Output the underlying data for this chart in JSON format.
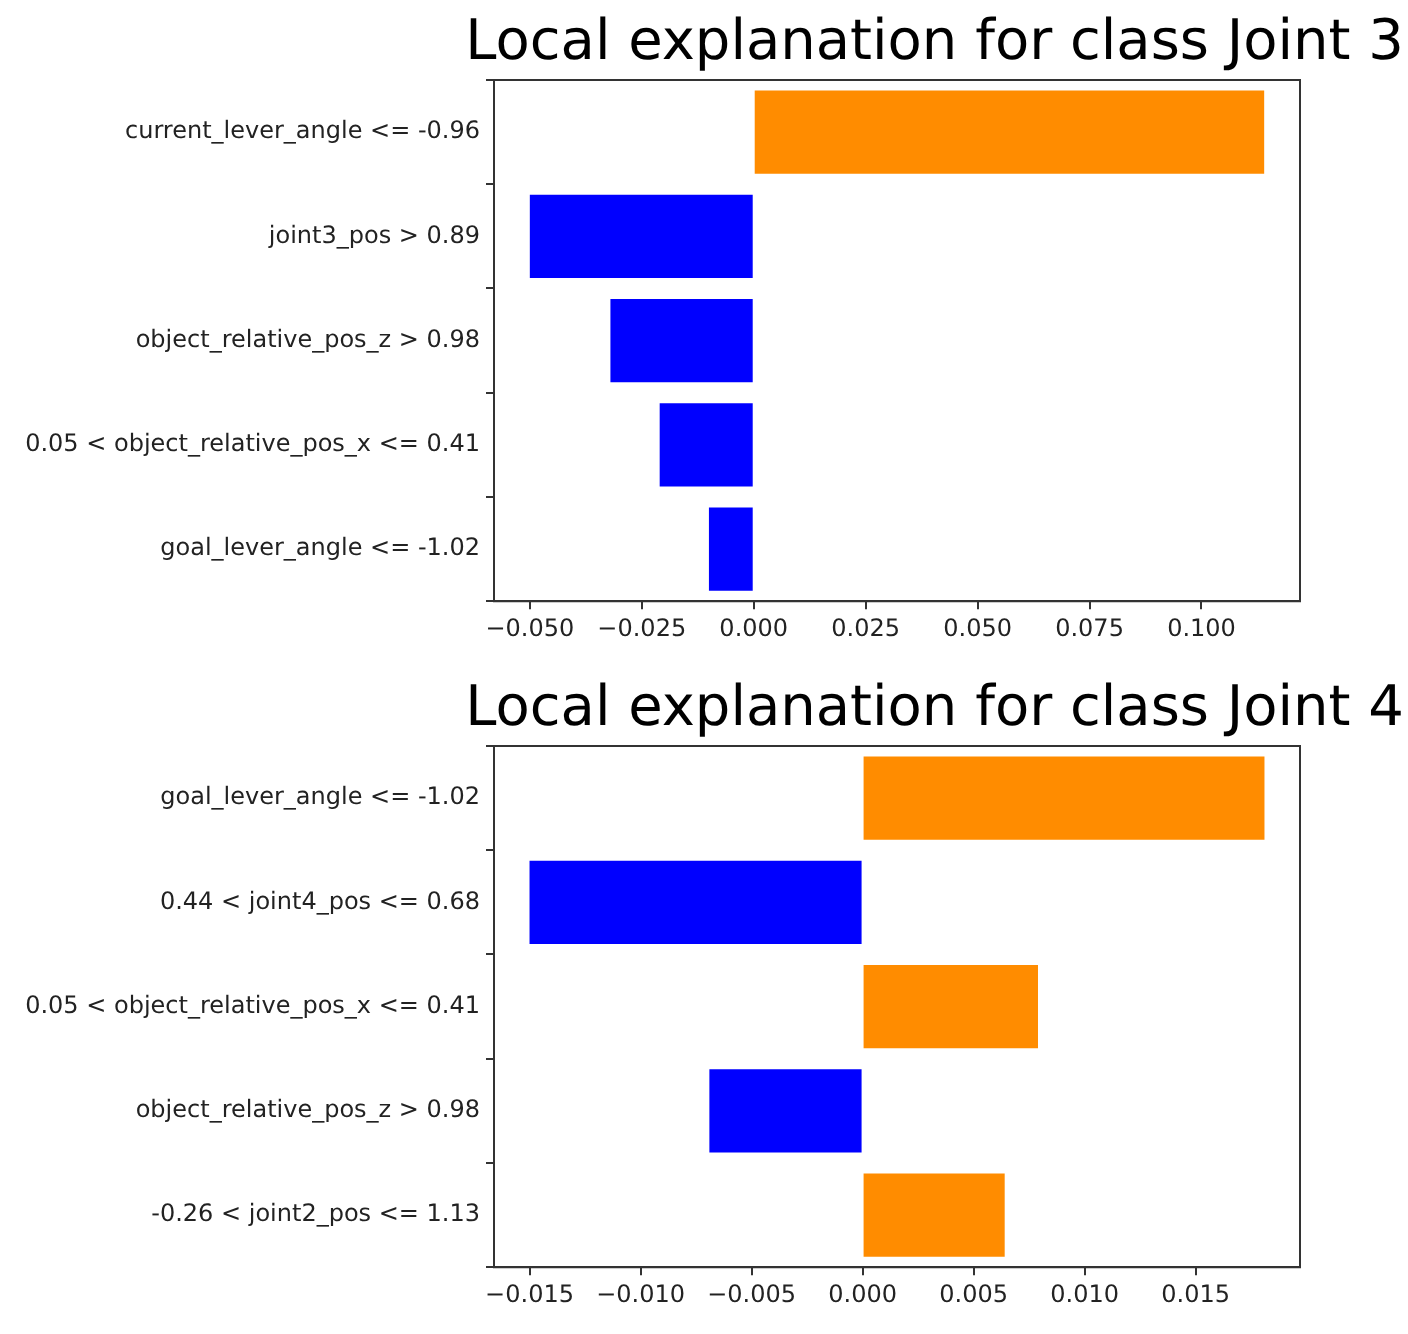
{
  "chart_data": [
    {
      "type": "bar",
      "orientation": "horizontal",
      "title": "Local explanation for class Joint 3",
      "categories": [
        "current_lever_angle <= -0.96",
        "joint3_pos > 0.89",
        "object_relative_pos_z > 0.98",
        "0.05 < object_relative_pos_x <= 0.41",
        "goal_lever_angle <= -1.02"
      ],
      "values": [
        0.114,
        -0.05,
        -0.032,
        -0.021,
        -0.01
      ],
      "colors": [
        "#ff8c00",
        "#0000ff",
        "#0000ff",
        "#0000ff",
        "#0000ff"
      ],
      "xlim": [
        -0.058,
        0.122
      ],
      "xticks": [
        {
          "value": -0.05,
          "label": "−0.050"
        },
        {
          "value": -0.025,
          "label": "−0.025"
        },
        {
          "value": 0,
          "label": "0.000"
        },
        {
          "value": 0.025,
          "label": "0.025"
        },
        {
          "value": 0.05,
          "label": "0.050"
        },
        {
          "value": 0.075,
          "label": "0.075"
        },
        {
          "value": 0.1,
          "label": "0.100"
        }
      ]
    },
    {
      "type": "bar",
      "orientation": "horizontal",
      "title": "Local explanation for class Joint 4",
      "categories": [
        "goal_lever_angle <= -1.02",
        "0.44 < joint4_pos <= 0.68",
        "0.05 < object_relative_pos_x <= 0.41",
        "object_relative_pos_z > 0.98",
        "-0.26 < joint2_pos <= 1.13"
      ],
      "values": [
        0.0181,
        -0.015,
        0.0079,
        -0.0069,
        0.0064
      ],
      "colors": [
        "#ff8c00",
        "#0000ff",
        "#ff8c00",
        "#0000ff",
        "#ff8c00"
      ],
      "xlim": [
        -0.0166,
        0.0197
      ],
      "xticks": [
        {
          "value": -0.015,
          "label": "−0.015"
        },
        {
          "value": -0.01,
          "label": "−0.010"
        },
        {
          "value": -0.005,
          "label": "−0.005"
        },
        {
          "value": 0,
          "label": "0.000"
        },
        {
          "value": 0.005,
          "label": "0.005"
        },
        {
          "value": 0.01,
          "label": "0.010"
        },
        {
          "value": 0.015,
          "label": "0.015"
        }
      ]
    }
  ]
}
